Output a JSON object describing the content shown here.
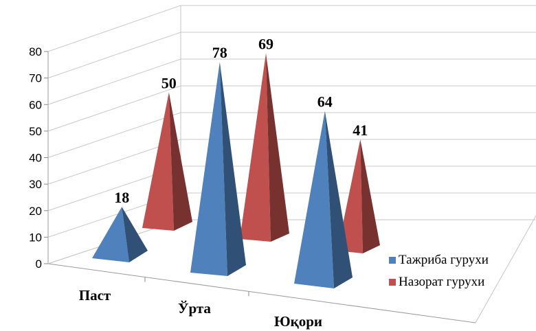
{
  "chart_data": {
    "type": "bar",
    "style": "3d-pyramid",
    "categories": [
      "Паст",
      "Ўрта",
      "Юқори"
    ],
    "series": [
      {
        "name": "Тажриба гурухи",
        "color": "#4f81bd",
        "values": [
          18,
          78,
          64
        ]
      },
      {
        "name": "Назорат гурухи",
        "color": "#c0504d",
        "values": [
          50,
          69,
          41
        ]
      }
    ],
    "ylim": [
      0,
      80
    ],
    "yticks": [
      "0",
      "10",
      "20",
      "30",
      "40",
      "50",
      "60",
      "70",
      "80"
    ],
    "grid": true,
    "legend_position": "right"
  }
}
